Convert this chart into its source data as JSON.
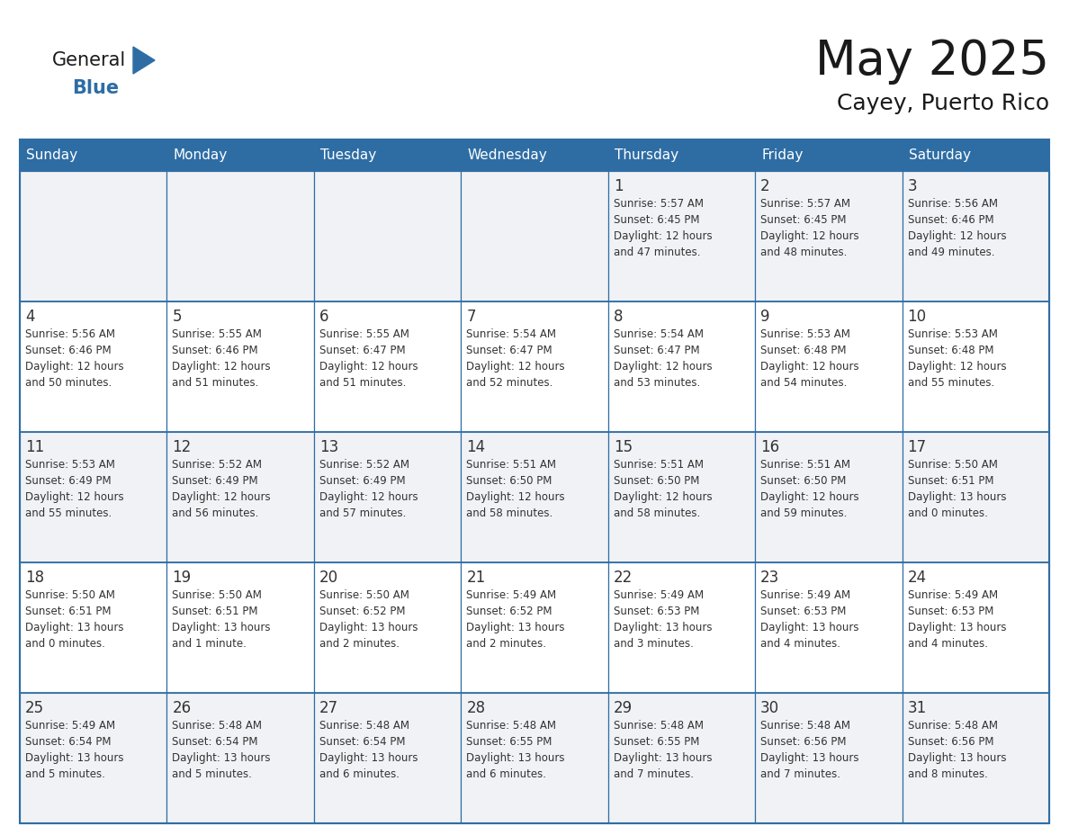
{
  "title": "May 2025",
  "subtitle": "Cayey, Puerto Rico",
  "days_of_week": [
    "Sunday",
    "Monday",
    "Tuesday",
    "Wednesday",
    "Thursday",
    "Friday",
    "Saturday"
  ],
  "header_bg_color": "#2e6da4",
  "header_text_color": "#ffffff",
  "cell_bg_white": "#ffffff",
  "cell_bg_gray": "#f0f2f5",
  "grid_color": "#2e6da4",
  "day_number_color": "#333333",
  "text_color": "#333333",
  "title_color": "#1a1a1a",
  "logo_general_color": "#1a1a1a",
  "logo_blue_color": "#2e6da4",
  "weeks": [
    [
      {
        "day": null,
        "info": null
      },
      {
        "day": null,
        "info": null
      },
      {
        "day": null,
        "info": null
      },
      {
        "day": null,
        "info": null
      },
      {
        "day": 1,
        "info": "Sunrise: 5:57 AM\nSunset: 6:45 PM\nDaylight: 12 hours\nand 47 minutes."
      },
      {
        "day": 2,
        "info": "Sunrise: 5:57 AM\nSunset: 6:45 PM\nDaylight: 12 hours\nand 48 minutes."
      },
      {
        "day": 3,
        "info": "Sunrise: 5:56 AM\nSunset: 6:46 PM\nDaylight: 12 hours\nand 49 minutes."
      }
    ],
    [
      {
        "day": 4,
        "info": "Sunrise: 5:56 AM\nSunset: 6:46 PM\nDaylight: 12 hours\nand 50 minutes."
      },
      {
        "day": 5,
        "info": "Sunrise: 5:55 AM\nSunset: 6:46 PM\nDaylight: 12 hours\nand 51 minutes."
      },
      {
        "day": 6,
        "info": "Sunrise: 5:55 AM\nSunset: 6:47 PM\nDaylight: 12 hours\nand 51 minutes."
      },
      {
        "day": 7,
        "info": "Sunrise: 5:54 AM\nSunset: 6:47 PM\nDaylight: 12 hours\nand 52 minutes."
      },
      {
        "day": 8,
        "info": "Sunrise: 5:54 AM\nSunset: 6:47 PM\nDaylight: 12 hours\nand 53 minutes."
      },
      {
        "day": 9,
        "info": "Sunrise: 5:53 AM\nSunset: 6:48 PM\nDaylight: 12 hours\nand 54 minutes."
      },
      {
        "day": 10,
        "info": "Sunrise: 5:53 AM\nSunset: 6:48 PM\nDaylight: 12 hours\nand 55 minutes."
      }
    ],
    [
      {
        "day": 11,
        "info": "Sunrise: 5:53 AM\nSunset: 6:49 PM\nDaylight: 12 hours\nand 55 minutes."
      },
      {
        "day": 12,
        "info": "Sunrise: 5:52 AM\nSunset: 6:49 PM\nDaylight: 12 hours\nand 56 minutes."
      },
      {
        "day": 13,
        "info": "Sunrise: 5:52 AM\nSunset: 6:49 PM\nDaylight: 12 hours\nand 57 minutes."
      },
      {
        "day": 14,
        "info": "Sunrise: 5:51 AM\nSunset: 6:50 PM\nDaylight: 12 hours\nand 58 minutes."
      },
      {
        "day": 15,
        "info": "Sunrise: 5:51 AM\nSunset: 6:50 PM\nDaylight: 12 hours\nand 58 minutes."
      },
      {
        "day": 16,
        "info": "Sunrise: 5:51 AM\nSunset: 6:50 PM\nDaylight: 12 hours\nand 59 minutes."
      },
      {
        "day": 17,
        "info": "Sunrise: 5:50 AM\nSunset: 6:51 PM\nDaylight: 13 hours\nand 0 minutes."
      }
    ],
    [
      {
        "day": 18,
        "info": "Sunrise: 5:50 AM\nSunset: 6:51 PM\nDaylight: 13 hours\nand 0 minutes."
      },
      {
        "day": 19,
        "info": "Sunrise: 5:50 AM\nSunset: 6:51 PM\nDaylight: 13 hours\nand 1 minute."
      },
      {
        "day": 20,
        "info": "Sunrise: 5:50 AM\nSunset: 6:52 PM\nDaylight: 13 hours\nand 2 minutes."
      },
      {
        "day": 21,
        "info": "Sunrise: 5:49 AM\nSunset: 6:52 PM\nDaylight: 13 hours\nand 2 minutes."
      },
      {
        "day": 22,
        "info": "Sunrise: 5:49 AM\nSunset: 6:53 PM\nDaylight: 13 hours\nand 3 minutes."
      },
      {
        "day": 23,
        "info": "Sunrise: 5:49 AM\nSunset: 6:53 PM\nDaylight: 13 hours\nand 4 minutes."
      },
      {
        "day": 24,
        "info": "Sunrise: 5:49 AM\nSunset: 6:53 PM\nDaylight: 13 hours\nand 4 minutes."
      }
    ],
    [
      {
        "day": 25,
        "info": "Sunrise: 5:49 AM\nSunset: 6:54 PM\nDaylight: 13 hours\nand 5 minutes."
      },
      {
        "day": 26,
        "info": "Sunrise: 5:48 AM\nSunset: 6:54 PM\nDaylight: 13 hours\nand 5 minutes."
      },
      {
        "day": 27,
        "info": "Sunrise: 5:48 AM\nSunset: 6:54 PM\nDaylight: 13 hours\nand 6 minutes."
      },
      {
        "day": 28,
        "info": "Sunrise: 5:48 AM\nSunset: 6:55 PM\nDaylight: 13 hours\nand 6 minutes."
      },
      {
        "day": 29,
        "info": "Sunrise: 5:48 AM\nSunset: 6:55 PM\nDaylight: 13 hours\nand 7 minutes."
      },
      {
        "day": 30,
        "info": "Sunrise: 5:48 AM\nSunset: 6:56 PM\nDaylight: 13 hours\nand 7 minutes."
      },
      {
        "day": 31,
        "info": "Sunrise: 5:48 AM\nSunset: 6:56 PM\nDaylight: 13 hours\nand 8 minutes."
      }
    ]
  ]
}
